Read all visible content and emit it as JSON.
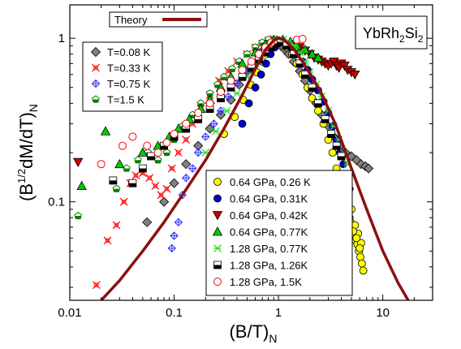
{
  "chart_data": {
    "type": "scatter",
    "title": "",
    "annotation": {
      "text": "YbRh",
      "sub1": "2",
      "mid": "Si",
      "sub2": "2"
    },
    "xlabel": {
      "base": "(B/T)",
      "sub": "N"
    },
    "ylabel": {
      "open": "(B",
      "sup": "1/2",
      "rest": "dM/dT)",
      "sub": "N"
    },
    "x_scale": "log",
    "y_scale": "log",
    "xlim": [
      0.01,
      30
    ],
    "ylim": [
      0.025,
      1.6
    ],
    "x_ticks": [
      {
        "value": 0.01,
        "label": "0.01"
      },
      {
        "value": 0.1,
        "label": "0.1"
      },
      {
        "value": 1,
        "label": "1"
      },
      {
        "value": 10,
        "label": "10"
      }
    ],
    "y_ticks": [
      {
        "value": 0.1,
        "label": "0.1"
      },
      {
        "value": 1,
        "label": "1"
      }
    ],
    "grid": false,
    "colors": {
      "theory": "#8b1010"
    },
    "theory": {
      "name": "Theory",
      "x": [
        0.02,
        0.03,
        0.05,
        0.08,
        0.12,
        0.2,
        0.3,
        0.45,
        0.6,
        0.75,
        0.9,
        1.0,
        1.15,
        1.4,
        1.8,
        2.5,
        3.5,
        5,
        7,
        10,
        14,
        17.5
      ],
      "y": [
        0.025,
        0.033,
        0.05,
        0.075,
        0.11,
        0.18,
        0.28,
        0.45,
        0.65,
        0.85,
        0.97,
        1.0,
        0.97,
        0.86,
        0.68,
        0.48,
        0.3,
        0.16,
        0.09,
        0.05,
        0.032,
        0.025
      ]
    },
    "legend_left": [
      {
        "name": "T=0.08 K",
        "marker": "diamond",
        "color": "#808080",
        "stroke": "#000000"
      },
      {
        "name": "T=0.33 K",
        "marker": "xbox",
        "color": "#ff0000",
        "stroke": "#ff0000"
      },
      {
        "name": "T=0.75 K",
        "marker": "crossdiamond",
        "color": "#3030ff",
        "stroke": "#3030ff"
      },
      {
        "name": "T=1.5 K",
        "marker": "pentagon",
        "color": "#008000",
        "stroke": "#008000"
      }
    ],
    "legend_right": [
      {
        "name": "0.64 GPa, 0.26 K",
        "marker": "circle",
        "color": "#ffff00",
        "stroke": "#000000"
      },
      {
        "name": "0.64 GPa, 0.31K",
        "marker": "circle",
        "color": "#0000cc",
        "stroke": "#000000"
      },
      {
        "name": "0.64 GPa, 0.42K",
        "marker": "tri-down",
        "color": "#cc0000",
        "stroke": "#000000"
      },
      {
        "name": "0.64 GPa, 0.77K",
        "marker": "tri-up",
        "color": "#00cc00",
        "stroke": "#000000"
      },
      {
        "name": "1.28 GPa, 0.77K",
        "marker": "xstar",
        "color": "#33dd33",
        "stroke": "#33dd33"
      },
      {
        "name": "1.28 GPa, 1.26K",
        "marker": "halfsquare",
        "color": "#000000",
        "stroke": "#000000"
      },
      {
        "name": "1.28 GPa, 1.5K",
        "marker": "open-circle",
        "color": "#ffffff",
        "stroke": "#ff0000"
      }
    ],
    "series": [
      {
        "marker": "diamond",
        "color": "#808080",
        "stroke": "#000000",
        "x": [
          0.055,
          0.08,
          0.1,
          0.13,
          0.17,
          0.22,
          0.28,
          0.35,
          0.42,
          0.5,
          0.58,
          0.65,
          0.72,
          0.8,
          0.88,
          0.95,
          1.05,
          1.15,
          1.25,
          1.4,
          1.6,
          1.8,
          2.0,
          2.3,
          2.6,
          3.0,
          3.4,
          3.9,
          4.4,
          5.0,
          5.6,
          6.2,
          6.8,
          7.3
        ],
        "y": [
          0.075,
          0.1,
          0.13,
          0.17,
          0.22,
          0.28,
          0.34,
          0.42,
          0.52,
          0.62,
          0.7,
          0.78,
          0.85,
          0.91,
          0.95,
          0.95,
          0.9,
          0.85,
          0.8,
          0.72,
          0.63,
          0.55,
          0.48,
          0.4,
          0.34,
          0.29,
          0.25,
          0.22,
          0.2,
          0.19,
          0.18,
          0.17,
          0.165,
          0.16
        ]
      },
      {
        "marker": "xbox",
        "color": "#ff0000",
        "stroke": "#ff0000",
        "x": [
          0.018,
          0.023,
          0.028,
          0.033,
          0.038,
          0.043,
          0.05,
          0.058,
          0.066,
          0.075,
          0.085,
          0.095,
          0.11,
          0.13,
          0.15,
          0.18,
          0.22,
          0.27,
          0.33,
          0.4,
          0.5,
          0.6,
          0.7,
          0.8,
          0.9
        ],
        "y": [
          0.031,
          0.058,
          0.072,
          0.1,
          0.13,
          0.145,
          0.15,
          0.14,
          0.125,
          0.11,
          0.12,
          0.16,
          0.2,
          0.24,
          0.3,
          0.37,
          0.45,
          0.55,
          0.63,
          0.72,
          0.8,
          0.88,
          0.93,
          0.97,
          0.99
        ]
      },
      {
        "marker": "crossdiamond",
        "color": "#3030ff",
        "stroke": "#3030ff",
        "x": [
          0.095,
          0.1,
          0.11,
          0.12,
          0.13,
          0.15,
          0.17,
          0.2,
          0.24,
          0.28,
          0.33,
          0.4,
          0.48,
          0.56,
          0.65
        ],
        "y": [
          0.052,
          0.062,
          0.075,
          0.11,
          0.14,
          0.16,
          0.2,
          0.25,
          0.3,
          0.36,
          0.44,
          0.53,
          0.62,
          0.72,
          0.82
        ]
      },
      {
        "marker": "pentagon",
        "color": "#008000",
        "stroke": "#008000",
        "x": [
          0.012,
          0.028,
          0.035,
          0.045,
          0.056,
          0.07,
          0.085,
          0.1,
          0.12,
          0.15,
          0.18,
          0.22,
          0.26,
          0.3,
          0.36,
          0.42,
          0.5,
          0.6,
          0.7,
          0.8
        ],
        "y": [
          0.082,
          0.12,
          0.16,
          0.18,
          0.2,
          0.18,
          0.2,
          0.24,
          0.29,
          0.34,
          0.4,
          0.46,
          0.52,
          0.58,
          0.65,
          0.72,
          0.8,
          0.88,
          0.94,
          0.98
        ]
      },
      {
        "marker": "circle",
        "color": "#ffff00",
        "stroke": "#000000",
        "x": [
          0.3,
          0.38,
          0.46,
          0.54,
          0.62,
          0.7,
          0.78,
          0.86,
          0.93,
          1.0,
          1.1,
          1.2,
          1.35,
          1.5,
          1.7,
          1.9,
          2.1,
          2.4,
          2.7,
          3.0,
          3.3,
          3.6,
          3.9,
          4.2,
          4.5,
          4.7,
          4.9,
          5.1,
          5.3,
          5.5,
          5.7,
          5.9,
          6.1,
          6.3,
          6.5,
          5.0,
          5.4,
          5.8,
          6.2,
          4.6,
          4.8,
          5.2,
          5.6,
          6.0
        ],
        "y": [
          0.26,
          0.33,
          0.42,
          0.52,
          0.62,
          0.72,
          0.8,
          0.88,
          0.93,
          0.97,
          0.95,
          0.88,
          0.8,
          0.7,
          0.6,
          0.5,
          0.43,
          0.36,
          0.3,
          0.24,
          0.2,
          0.16,
          0.13,
          0.11,
          0.095,
          0.085,
          0.075,
          0.068,
          0.062,
          0.058,
          0.055,
          0.05,
          0.046,
          0.042,
          0.038,
          0.09,
          0.072,
          0.064,
          0.056,
          0.1,
          0.08,
          0.066,
          0.06,
          0.052
        ]
      },
      {
        "marker": "circle",
        "color": "#0000cc",
        "stroke": "#000000",
        "x": [
          0.45,
          0.52,
          0.6,
          0.68,
          0.76,
          0.84,
          0.92,
          1.0,
          1.1,
          1.2,
          1.35,
          1.5,
          1.7,
          1.9,
          2.1,
          2.4,
          2.7,
          3.0,
          3.3,
          3.6,
          3.9,
          4.2,
          4.5,
          4.8
        ],
        "y": [
          0.3,
          0.4,
          0.5,
          0.6,
          0.7,
          0.8,
          0.88,
          0.93,
          0.95,
          0.92,
          0.86,
          0.8,
          0.72,
          0.64,
          0.56,
          0.48,
          0.41,
          0.35,
          0.29,
          0.24,
          0.2,
          0.17,
          0.14,
          0.12
        ]
      },
      {
        "marker": "tri-down",
        "color": "#cc0000",
        "stroke": "#000000",
        "x": [
          0.012,
          1.4,
          1.6,
          1.8,
          2.0,
          2.2,
          2.4,
          2.6,
          2.8,
          3.0,
          3.2,
          3.4,
          3.6,
          3.8,
          4.0,
          4.3,
          4.6,
          5.0,
          5.4
        ],
        "y": [
          0.175,
          0.92,
          0.88,
          0.84,
          0.8,
          0.76,
          0.74,
          0.72,
          0.7,
          0.68,
          0.7,
          0.72,
          0.68,
          0.66,
          0.7,
          0.68,
          0.64,
          0.62,
          0.6
        ]
      },
      {
        "marker": "tri-up",
        "color": "#00cc00",
        "stroke": "#000000",
        "x": [
          0.013,
          0.022,
          0.03,
          0.05,
          0.07,
          0.09,
          0.11,
          0.14,
          0.18,
          0.22,
          0.28,
          0.35,
          0.45,
          0.6,
          0.75,
          0.9,
          1.1,
          1.3,
          1.5,
          1.8,
          2.1,
          2.4
        ],
        "y": [
          0.125,
          0.27,
          0.17,
          0.2,
          0.22,
          0.25,
          0.28,
          0.32,
          0.37,
          0.42,
          0.5,
          0.58,
          0.7,
          0.82,
          0.92,
          0.98,
          0.98,
          0.95,
          0.9,
          0.85,
          0.8,
          0.76
        ]
      },
      {
        "marker": "xstar",
        "color": "#33dd33",
        "stroke": "#33dd33",
        "x": [
          0.2,
          0.25,
          0.32,
          0.4,
          0.5,
          0.6,
          0.7,
          0.8,
          0.9,
          1.0,
          1.1,
          1.25,
          1.4,
          1.6,
          1.8,
          2.0,
          2.3,
          2.6,
          3.0,
          3.4,
          3.8,
          4.2,
          4.6
        ],
        "y": [
          0.2,
          0.27,
          0.36,
          0.46,
          0.58,
          0.7,
          0.8,
          0.88,
          0.94,
          0.98,
          0.98,
          0.95,
          0.9,
          0.82,
          0.72,
          0.62,
          0.52,
          0.44,
          0.36,
          0.29,
          0.24,
          0.2,
          0.17
        ]
      },
      {
        "marker": "halfsquare",
        "color": "#000000",
        "stroke": "#000000",
        "x": [
          0.026,
          0.04,
          0.05,
          0.06,
          0.08,
          0.1,
          0.13,
          0.17,
          0.22,
          0.28,
          0.35,
          0.45,
          0.55,
          0.65,
          0.75,
          0.85,
          0.95,
          1.05,
          1.2,
          1.4,
          1.6,
          1.8,
          2.1,
          2.4,
          2.8,
          3.2,
          3.6,
          4.0
        ],
        "y": [
          0.135,
          0.13,
          0.16,
          0.19,
          0.22,
          0.25,
          0.28,
          0.32,
          0.37,
          0.43,
          0.5,
          0.58,
          0.66,
          0.74,
          0.82,
          0.88,
          0.93,
          0.95,
          0.9,
          0.8,
          0.7,
          0.6,
          0.5,
          0.4,
          0.32,
          0.26,
          0.22,
          0.19
        ]
      },
      {
        "marker": "open-circle",
        "color": "#ffffff",
        "stroke": "#ff0000",
        "x": [
          0.02,
          0.032,
          0.04,
          0.055,
          0.07,
          0.085,
          0.1,
          0.13,
          0.17,
          0.22,
          0.28,
          0.35,
          0.45,
          0.55,
          0.65,
          0.75,
          0.85,
          1.5,
          1.7
        ],
        "y": [
          0.17,
          0.22,
          0.25,
          0.22,
          0.2,
          0.23,
          0.26,
          0.3,
          0.35,
          0.4,
          0.47,
          0.55,
          0.64,
          0.72,
          0.8,
          0.88,
          0.94,
          0.98,
          0.99
        ]
      }
    ]
  }
}
